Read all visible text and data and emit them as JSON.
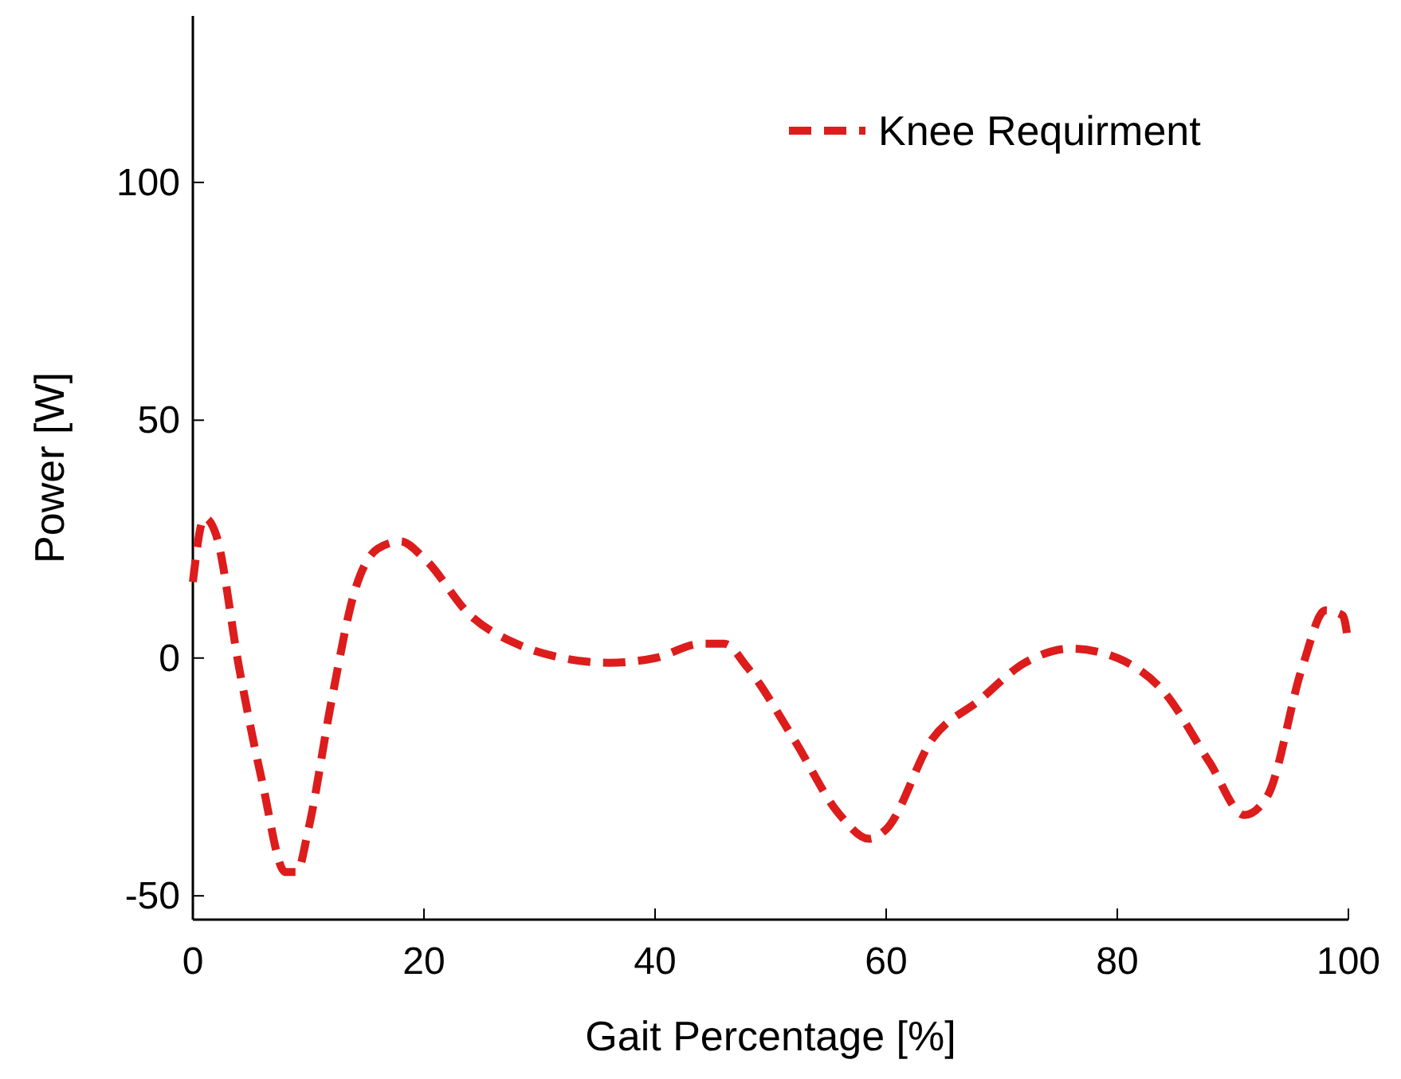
{
  "chart_data": {
    "type": "line",
    "xlabel": "Gait  Percentage [%]",
    "ylabel": "Power [W]",
    "xlim": [
      0,
      100
    ],
    "xticks": [
      0,
      20,
      40,
      60,
      80,
      100
    ],
    "ylim": [
      -55,
      135
    ],
    "yticks": [
      -50,
      0,
      50,
      100
    ],
    "legend": "top right",
    "line_style": "dashed",
    "grid": false,
    "series": [
      {
        "name": "Knee Requirment",
        "color": "#dd1c1c",
        "x": [
          0,
          1,
          2,
          4,
          6,
          8,
          9,
          10,
          12,
          14,
          16,
          18,
          20,
          24,
          28,
          32,
          36,
          40,
          44,
          46,
          48,
          52,
          56,
          58.5,
          60,
          64,
          68,
          72,
          76,
          80,
          84,
          88,
          91,
          93,
          96,
          98,
          99.5,
          100
        ],
        "values": [
          16,
          29.5,
          26,
          -2,
          -26,
          -45,
          -45,
          -36,
          -9,
          14,
          23,
          24.5,
          21,
          9,
          3,
          0,
          -1,
          0,
          3,
          3,
          -2,
          -17,
          -33,
          -38,
          -36,
          -17,
          -9,
          -1,
          2,
          0,
          -7,
          -22,
          -33,
          -29,
          -2,
          10,
          9,
          3
        ]
      }
    ]
  }
}
